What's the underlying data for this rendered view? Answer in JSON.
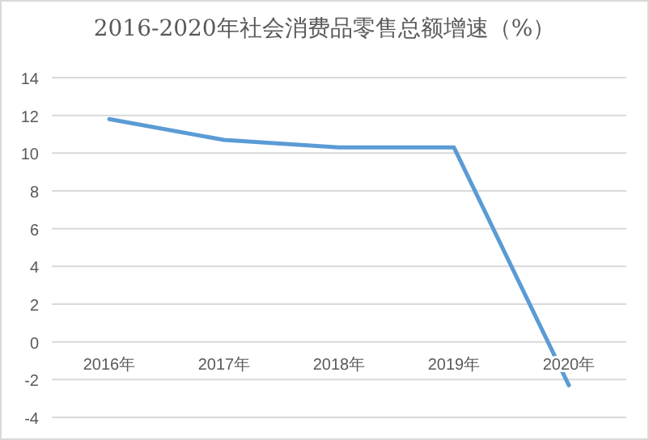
{
  "chart_data": {
    "type": "line",
    "title": "2016-2020年社会消费品零售总额增速（%）",
    "categories": [
      "2016年",
      "2017年",
      "2018年",
      "2019年",
      "2020年"
    ],
    "series": [
      {
        "color": "#5b9bd5",
        "values": [
          11.8,
          10.7,
          10.3,
          10.3,
          -2.3
        ]
      }
    ],
    "ylim": [
      -4,
      14
    ],
    "yticks": [
      -4,
      -2,
      0,
      2,
      4,
      6,
      8,
      10,
      12,
      14
    ],
    "grid": "y",
    "marker": "none",
    "line_style": "solid"
  }
}
